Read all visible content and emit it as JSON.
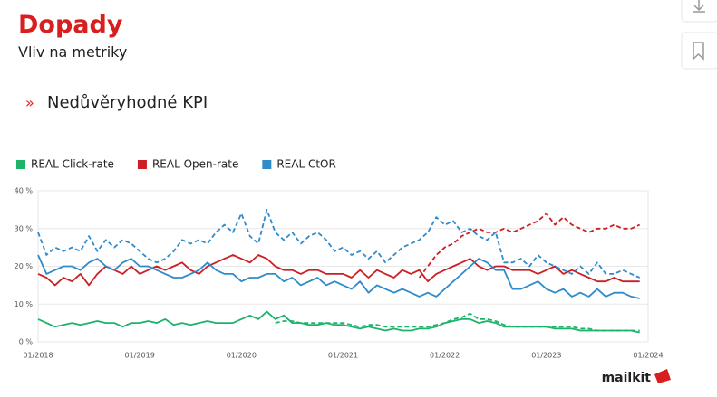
{
  "slide": {
    "title": "Dopady",
    "subtitle": "Vliv na metriky",
    "bullet_marker": "»",
    "bullet": "Nedůvěryhodné KPI",
    "logo": "mailkit"
  },
  "chart_data": {
    "type": "line",
    "x": [
      "01/2018",
      "02/2018",
      "03/2018",
      "04/2018",
      "05/2018",
      "06/2018",
      "07/2018",
      "08/2018",
      "09/2018",
      "10/2018",
      "11/2018",
      "12/2018",
      "01/2019",
      "02/2019",
      "03/2019",
      "04/2019",
      "05/2019",
      "06/2019",
      "07/2019",
      "08/2019",
      "09/2019",
      "10/2019",
      "11/2019",
      "12/2019",
      "01/2020",
      "02/2020",
      "03/2020",
      "04/2020",
      "05/2020",
      "06/2020",
      "07/2020",
      "08/2020",
      "09/2020",
      "10/2020",
      "11/2020",
      "12/2020",
      "01/2021",
      "02/2021",
      "03/2021",
      "04/2021",
      "05/2021",
      "06/2021",
      "07/2021",
      "08/2021",
      "09/2021",
      "10/2021",
      "11/2021",
      "12/2021",
      "01/2022",
      "02/2022",
      "03/2022",
      "04/2022",
      "05/2022",
      "06/2022",
      "07/2022",
      "08/2022",
      "09/2022",
      "10/2022",
      "11/2022",
      "12/2022",
      "01/2023",
      "02/2023",
      "03/2023",
      "04/2023",
      "05/2023",
      "06/2023",
      "07/2023",
      "08/2023",
      "09/2023",
      "10/2023",
      "11/2023",
      "12/2023"
    ],
    "xticks": [
      "01/2018",
      "01/2019",
      "01/2020",
      "01/2021",
      "01/2022",
      "01/2023"
    ],
    "xend_label": "01/2024",
    "ylim": [
      0,
      40
    ],
    "yticks": [
      {
        "value": 0,
        "label": "0 %"
      },
      {
        "value": 10,
        "label": "10 %"
      },
      {
        "value": 20,
        "label": "20 %"
      },
      {
        "value": 30,
        "label": "30 %"
      },
      {
        "value": 40,
        "label": "40 %"
      }
    ],
    "grid": true,
    "series": [
      {
        "name": "REAL Click-rate",
        "color": "#1db36b",
        "dash": false,
        "values": [
          6,
          5,
          4,
          4.5,
          5,
          4.5,
          5,
          5.5,
          5,
          5,
          4,
          5,
          5,
          5.5,
          5,
          6,
          4.5,
          5,
          4.5,
          5,
          5.5,
          5,
          5,
          5,
          6,
          7,
          6,
          8,
          6,
          7,
          5,
          5,
          4.5,
          4.5,
          5,
          4.5,
          4.5,
          4,
          3.5,
          4,
          3.5,
          3,
          3.5,
          3,
          3,
          3.5,
          3.5,
          4,
          5,
          5.5,
          6,
          6,
          5,
          5.5,
          5,
          4,
          4,
          4,
          4,
          4,
          4,
          3.5,
          3.5,
          3.5,
          3,
          3,
          3,
          3,
          3,
          3,
          3,
          2.5
        ]
      },
      {
        "name": "REAL Open-rate",
        "color": "#cc1f25",
        "dash": false,
        "values": [
          18,
          17,
          15,
          17,
          16,
          18,
          15,
          18,
          20,
          19,
          18,
          20,
          18,
          19,
          20,
          19,
          20,
          21,
          19,
          18,
          20,
          21,
          22,
          23,
          22,
          21,
          23,
          22,
          20,
          19,
          19,
          18,
          19,
          19,
          18,
          18,
          18,
          17,
          19,
          17,
          19,
          18,
          17,
          19,
          18,
          19,
          16,
          18,
          19,
          20,
          21,
          22,
          20,
          19,
          20,
          20,
          19,
          19,
          19,
          18,
          19,
          20,
          18,
          19,
          18,
          17,
          16,
          16,
          17,
          16,
          16,
          16
        ]
      },
      {
        "name": "REAL CtOR",
        "color": "#2f8bc9",
        "dash": false,
        "values": [
          23,
          18,
          19,
          20,
          20,
          19,
          21,
          22,
          20,
          19,
          21,
          22,
          20,
          20,
          19,
          18,
          17,
          17,
          18,
          19,
          21,
          19,
          18,
          18,
          16,
          17,
          17,
          18,
          18,
          16,
          17,
          15,
          16,
          17,
          15,
          16,
          15,
          14,
          16,
          13,
          15,
          14,
          13,
          14,
          13,
          12,
          13,
          12,
          14,
          16,
          18,
          20,
          22,
          21,
          19,
          19,
          14,
          14,
          15,
          16,
          14,
          13,
          14,
          12,
          13,
          12,
          14,
          12,
          13,
          13,
          12,
          11.5
        ]
      },
      {
        "color": "#1db36b",
        "dash": true,
        "values": [
          null,
          null,
          null,
          null,
          null,
          null,
          null,
          null,
          null,
          null,
          null,
          null,
          null,
          null,
          null,
          null,
          null,
          null,
          null,
          null,
          null,
          null,
          null,
          null,
          null,
          null,
          null,
          null,
          5,
          5.5,
          5.5,
          5,
          5,
          5,
          5,
          5,
          5,
          4.5,
          4,
          4.5,
          4.5,
          4,
          4,
          4,
          4,
          4,
          4,
          4.5,
          5,
          6,
          6.5,
          7.5,
          6,
          6,
          5.5,
          4.5,
          4,
          4,
          4,
          4,
          4,
          4,
          4,
          4,
          3.5,
          3.5,
          3,
          3,
          3,
          3,
          3,
          3
        ]
      },
      {
        "color": "#cc1f25",
        "dash": true,
        "values": [
          null,
          null,
          null,
          null,
          null,
          null,
          null,
          null,
          null,
          null,
          null,
          null,
          null,
          null,
          null,
          null,
          null,
          null,
          null,
          null,
          null,
          null,
          null,
          null,
          null,
          null,
          null,
          null,
          null,
          null,
          null,
          null,
          null,
          null,
          null,
          null,
          null,
          null,
          null,
          null,
          null,
          null,
          null,
          null,
          null,
          17,
          20,
          23,
          25,
          26,
          28,
          29,
          30,
          29,
          29,
          30,
          29,
          30,
          31,
          32,
          34,
          31,
          33,
          31,
          30,
          29,
          30,
          30,
          31,
          30,
          30,
          31
        ]
      },
      {
        "color": "#2f8bc9",
        "dash": true,
        "values": [
          29,
          23,
          25,
          24,
          25,
          24,
          28,
          24,
          27,
          25,
          27,
          26,
          24,
          22,
          21,
          22,
          24,
          27,
          26,
          27,
          26,
          29,
          31,
          29,
          34,
          28,
          26,
          35,
          29,
          27,
          29,
          26,
          28,
          29,
          27,
          24,
          25,
          23,
          24,
          22,
          24,
          21,
          23,
          25,
          26,
          27,
          29,
          33,
          31,
          32,
          29,
          30,
          28,
          27,
          29,
          21,
          21,
          22,
          20,
          23,
          21,
          20,
          19,
          18,
          20,
          18,
          21,
          18,
          18,
          19,
          18,
          17
        ]
      }
    ]
  }
}
